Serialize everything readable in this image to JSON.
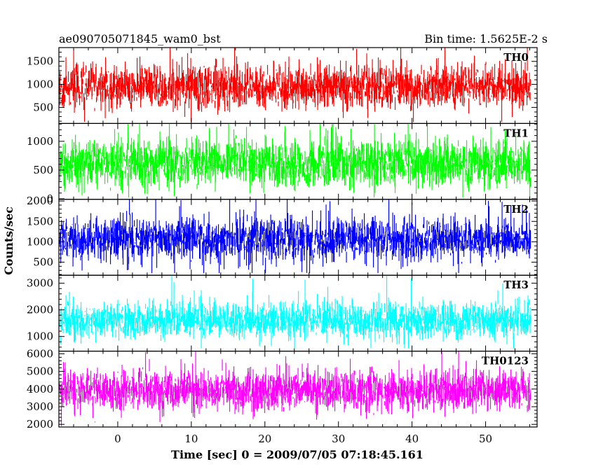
{
  "header": {
    "title": "ae090705071845_wam0_bst",
    "bin_time": "Bin time: 1.5625E-2 s"
  },
  "chart_data": {
    "type": "line",
    "title": "ae090705071845_wam0_bst",
    "xlabel": "Time [sec] 0 = 2009/07/05 07:18:45.161",
    "ylabel": "Counts/sec",
    "xlim": [
      -8,
      57
    ],
    "x_data_range": [
      -7.9,
      56.1
    ],
    "x_ticks": [
      0,
      10,
      20,
      30,
      40,
      50
    ],
    "grid": false,
    "panels": [
      {
        "name": "TH0",
        "color": "#ff0000",
        "ylim": [
          150,
          1800
        ],
        "y_ticks": [
          500,
          1000,
          1500
        ],
        "mean": 950,
        "noise_std": 230,
        "clip": [
          180,
          1800
        ],
        "outlier_prob": 0.012
      },
      {
        "name": "TH1",
        "color": "#00ff00",
        "ylim": [
          -10,
          1310
        ],
        "y_ticks": [
          0,
          500,
          1000
        ],
        "mean": 630,
        "noise_std": 200,
        "clip": [
          20,
          1310
        ],
        "outlier_prob": 0.012
      },
      {
        "name": "TH2",
        "color": "#0000ff",
        "ylim": [
          180,
          2040
        ],
        "y_ticks": [
          500,
          1000,
          1500,
          2000
        ],
        "mean": 1050,
        "noise_std": 260,
        "clip": [
          230,
          2040
        ],
        "outlier_prob": 0.012
      },
      {
        "name": "TH3",
        "color": "#00ffff",
        "ylim": [
          450,
          3300
        ],
        "y_ticks": [
          1000,
          2000,
          3000
        ],
        "mean": 1600,
        "noise_std": 340,
        "clip": [
          560,
          3300
        ],
        "outlier_prob": 0.012
      },
      {
        "name": "TH0123",
        "color": "#ff00ff",
        "ylim": [
          1850,
          6150
        ],
        "y_ticks": [
          2000,
          3000,
          4000,
          5000,
          6000
        ],
        "mean": 3900,
        "noise_std": 560,
        "clip": [
          1900,
          6150
        ],
        "outlier_prob": 0.012
      }
    ]
  }
}
